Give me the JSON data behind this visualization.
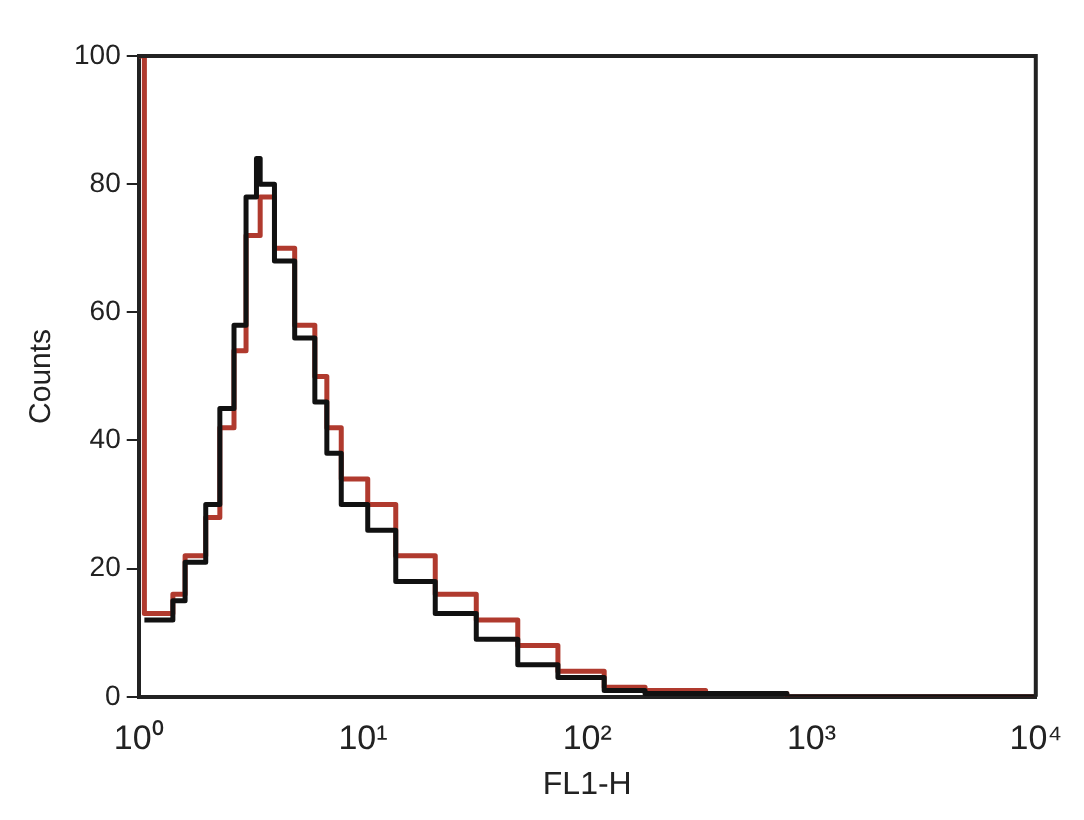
{
  "chart_data": {
    "type": "step",
    "xlabel": "FL1-H",
    "ylabel": "Counts",
    "log": "x",
    "grid": false,
    "legend": false,
    "marker": "none",
    "line_style": "solid",
    "xlim": [
      1,
      10000
    ],
    "ylim": [
      0,
      100
    ],
    "xticks": [
      {
        "value": 1,
        "label": "10⁰"
      },
      {
        "value": 10,
        "label": "10¹"
      },
      {
        "value": 100,
        "label": "10²"
      },
      {
        "value": 1000,
        "label": "10³"
      },
      {
        "value": 10000,
        "label": "10⁴"
      }
    ],
    "yticks": [
      0,
      20,
      40,
      60,
      80,
      100
    ],
    "series": [
      {
        "color": "#111111",
        "x": [
          1.06,
          1.42,
          1.61,
          1.99,
          2.3,
          2.66,
          3.01,
          3.35,
          3.48,
          4.03,
          4.96,
          6.1,
          6.9,
          8,
          10.5,
          14,
          21,
          32,
          49,
          74,
          119,
          181,
          337,
          776,
          10000
        ],
        "values": [
          12,
          15,
          21,
          30,
          45,
          58,
          78,
          84,
          80,
          68,
          56,
          46,
          38,
          30,
          26,
          18,
          13,
          9,
          5,
          3,
          1,
          0.5,
          0.5,
          0,
          0
        ]
      },
      {
        "color": "#b03a2e",
        "x": [
          1,
          1.06,
          1.42,
          1.61,
          1.99,
          2.3,
          2.66,
          3.01,
          3.48,
          4.03,
          4.96,
          6.1,
          6.9,
          8,
          10.5,
          14,
          21,
          32,
          49,
          74,
          119,
          181,
          337,
          776,
          10000
        ],
        "values": [
          100,
          13,
          16,
          22,
          28,
          42,
          54,
          72,
          78,
          70,
          58,
          50,
          42,
          34,
          30,
          22,
          16,
          12,
          8,
          4,
          1.5,
          1,
          0.5,
          0,
          0
        ]
      }
    ]
  }
}
